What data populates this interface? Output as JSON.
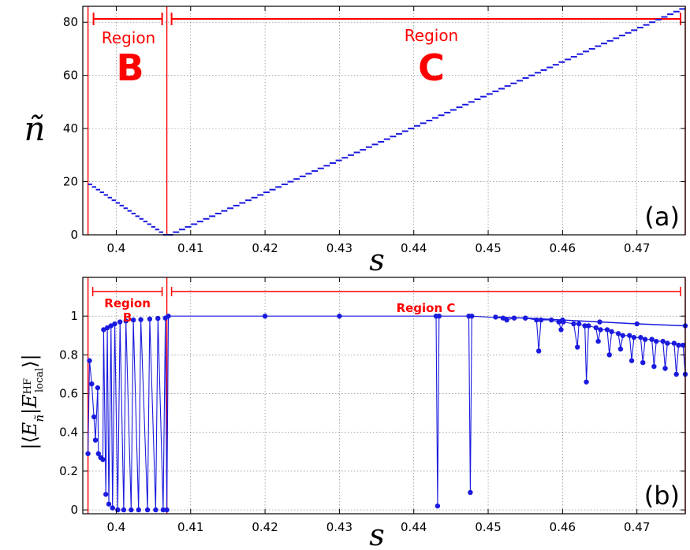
{
  "chart_data": [
    {
      "type": "scatter",
      "panel_label": "(a)",
      "xlabel": "s",
      "ylabel": "ñ",
      "xlim": [
        0.3955,
        0.4765
      ],
      "ylim": [
        0,
        86
      ],
      "xticks": [
        "0.4",
        "0.41",
        "0.42",
        "0.43",
        "0.44",
        "0.45",
        "0.46",
        "0.47"
      ],
      "yticks": [
        "0",
        "20",
        "40",
        "60",
        "80"
      ],
      "grid": true,
      "series": [
        {
          "style": "step",
          "segments": [
            {
              "s_start": 0.3962,
              "s_end": 0.4068,
              "n_start": 19,
              "n_end": 0
            },
            {
              "s_start": 0.4068,
              "s_end": 0.4765,
              "n_start": 0,
              "n_end": 85
            }
          ]
        }
      ],
      "region_lines": [
        0.3962,
        0.4068,
        0.4765
      ],
      "regions": [
        {
          "label": "Region",
          "letter": "B",
          "from": 0.3962,
          "to": 0.4068
        },
        {
          "label": "Region",
          "letter": "C",
          "from": 0.4068,
          "to": 0.4765
        }
      ]
    },
    {
      "type": "line",
      "panel_label": "(b)",
      "xlabel": "s",
      "ylabel": "|⟨E_ñ|E_local^HF⟩|",
      "xlim": [
        0.3955,
        0.4765
      ],
      "ylim": [
        -0.02,
        1.2
      ],
      "xticks": [
        "0.4",
        "0.41",
        "0.42",
        "0.43",
        "0.44",
        "0.45",
        "0.46",
        "0.47"
      ],
      "yticks": [
        "0",
        "0.2",
        "0.4",
        "0.6",
        "0.8",
        "1"
      ],
      "grid": true,
      "regions": [
        {
          "label": "Region B",
          "from": 0.3962,
          "to": 0.4068
        },
        {
          "label": "Region C",
          "from": 0.4068,
          "to": 0.4765
        }
      ],
      "region_lines": [
        0.3962,
        0.4068,
        0.4765
      ],
      "series": [
        {
          "points": [
            [
              0.3962,
              0.29
            ],
            [
              0.3964,
              0.77
            ],
            [
              0.3967,
              0.65
            ],
            [
              0.397,
              0.48
            ],
            [
              0.3972,
              0.36
            ],
            [
              0.3975,
              0.63
            ],
            [
              0.3976,
              0.29
            ],
            [
              0.3979,
              0.27
            ],
            [
              0.3982,
              0.26
            ],
            [
              0.3983,
              0.93
            ],
            [
              0.3986,
              0.08
            ],
            [
              0.3988,
              0.94
            ],
            [
              0.399,
              0.03
            ],
            [
              0.3993,
              0.95
            ],
            [
              0.3995,
              0.01
            ],
            [
              0.3998,
              0.96
            ],
            [
              0.4002,
              0.0
            ],
            [
              0.4005,
              0.97
            ],
            [
              0.401,
              0.0
            ],
            [
              0.4013,
              0.975
            ],
            [
              0.402,
              0.0
            ],
            [
              0.4023,
              0.98
            ],
            [
              0.403,
              0.0
            ],
            [
              0.4033,
              0.982
            ],
            [
              0.4042,
              0.0
            ],
            [
              0.4045,
              0.985
            ],
            [
              0.4053,
              0.0
            ],
            [
              0.4056,
              0.988
            ],
            [
              0.4063,
              0.0
            ],
            [
              0.4066,
              0.99
            ],
            [
              0.4068,
              0.0
            ],
            [
              0.407,
              1.0
            ],
            [
              0.42,
              1.0
            ],
            [
              0.43,
              1.0
            ],
            [
              0.443,
              1.0
            ],
            [
              0.4432,
              0.02
            ],
            [
              0.4434,
              1.0
            ],
            [
              0.4474,
              1.0
            ],
            [
              0.4476,
              0.09
            ],
            [
              0.4478,
              1.0
            ],
            [
              0.452,
              0.99
            ],
            [
              0.4525,
              0.98
            ],
            [
              0.4535,
              0.99
            ],
            [
              0.455,
              0.99
            ],
            [
              0.4565,
              0.98
            ],
            [
              0.4568,
              0.82
            ],
            [
              0.4571,
              0.98
            ],
            [
              0.4585,
              0.98
            ],
            [
              0.4595,
              0.97
            ],
            [
              0.4598,
              0.93
            ],
            [
              0.4601,
              0.97
            ],
            [
              0.4615,
              0.96
            ],
            [
              0.462,
              0.84
            ],
            [
              0.4622,
              0.96
            ],
            [
              0.463,
              0.95
            ],
            [
              0.4632,
              0.66
            ],
            [
              0.4635,
              0.95
            ],
            [
              0.4645,
              0.94
            ],
            [
              0.4648,
              0.87
            ],
            [
              0.4651,
              0.93
            ],
            [
              0.466,
              0.93
            ],
            [
              0.4663,
              0.8
            ],
            [
              0.4666,
              0.92
            ],
            [
              0.4675,
              0.91
            ],
            [
              0.4678,
              0.83
            ],
            [
              0.4681,
              0.9
            ],
            [
              0.469,
              0.9
            ],
            [
              0.4693,
              0.77
            ],
            [
              0.4696,
              0.89
            ],
            [
              0.4705,
              0.89
            ],
            [
              0.4708,
              0.76
            ],
            [
              0.4711,
              0.88
            ],
            [
              0.472,
              0.88
            ],
            [
              0.4723,
              0.74
            ],
            [
              0.4726,
              0.87
            ],
            [
              0.4735,
              0.87
            ],
            [
              0.4738,
              0.73
            ],
            [
              0.4741,
              0.86
            ],
            [
              0.475,
              0.86
            ],
            [
              0.4753,
              0.7
            ],
            [
              0.4756,
              0.85
            ],
            [
              0.4762,
              0.85
            ],
            [
              0.4765,
              0.7
            ]
          ],
          "upper_envelope": [
            [
              0.451,
              0.995
            ],
            [
              0.455,
              0.99
            ],
            [
              0.46,
              0.98
            ],
            [
              0.465,
              0.97
            ],
            [
              0.47,
              0.96
            ],
            [
              0.4765,
              0.95
            ]
          ]
        }
      ]
    }
  ],
  "colors": {
    "data": "#1a1adf",
    "region": "#ff0000",
    "axis": "#000000"
  }
}
